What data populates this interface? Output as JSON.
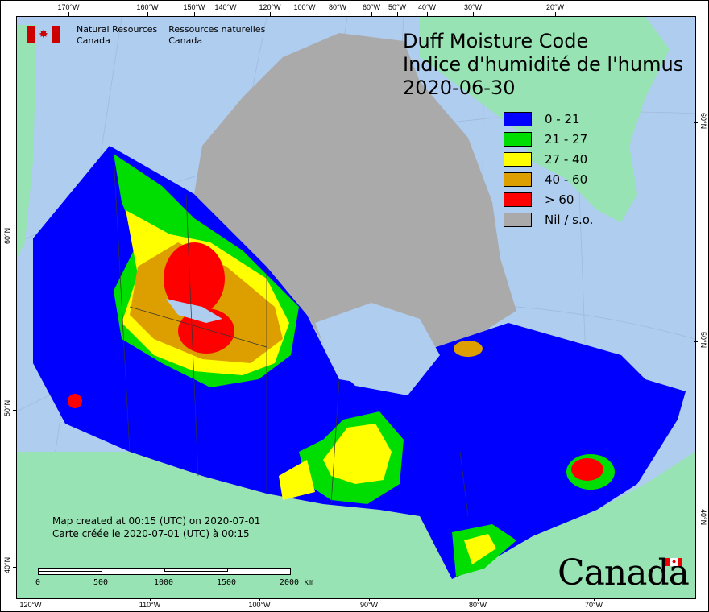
{
  "title": {
    "line1": "Duff Moisture Code",
    "line2": "Indice d'humidité de l'humus",
    "date": "2020-06-30"
  },
  "agency": {
    "en_line1": "Natural Resources",
    "en_line2": "Canada",
    "fr_line1": "Ressources naturelles",
    "fr_line2": "Canada"
  },
  "legend": [
    {
      "label": "0 - 21",
      "color": "#0000ff"
    },
    {
      "label": "21  - 27",
      "color": "#00dd00"
    },
    {
      "label": "27 - 40",
      "color": "#ffff00"
    },
    {
      "label": "40 - 60",
      "color": "#dd9f00"
    },
    {
      "label": "> 60",
      "color": "#ff0000"
    },
    {
      "label": "Nil / s.o.",
      "color": "#aaaaaa"
    }
  ],
  "created": {
    "en": "Map created at 00:15 (UTC) on 2020-07-01",
    "fr": "Carte créée le 2020-07-01 (UTC) à 00:15"
  },
  "scalebar": {
    "labels": [
      "0",
      "500",
      "1000",
      "1500",
      "2000  km"
    ]
  },
  "axes": {
    "top": [
      "170°W",
      "160°W",
      "150°W",
      "140°W",
      "120°W",
      "100°W",
      "80°W",
      "60°W",
      "50°W",
      "40°W",
      "30°W",
      "20°W"
    ],
    "bottom": [
      "120°W",
      "110°W",
      "100°W",
      "90°W",
      "80°W",
      "70°W"
    ],
    "left": [
      "60°N",
      "50°N",
      "40°N"
    ],
    "right": [
      "60°N",
      "50°N",
      "40°N"
    ]
  },
  "wordmark": "Canada",
  "colors": {
    "ocean": "#afcdef",
    "land": "#98e3b3",
    "nil": "#aaaaaa"
  }
}
